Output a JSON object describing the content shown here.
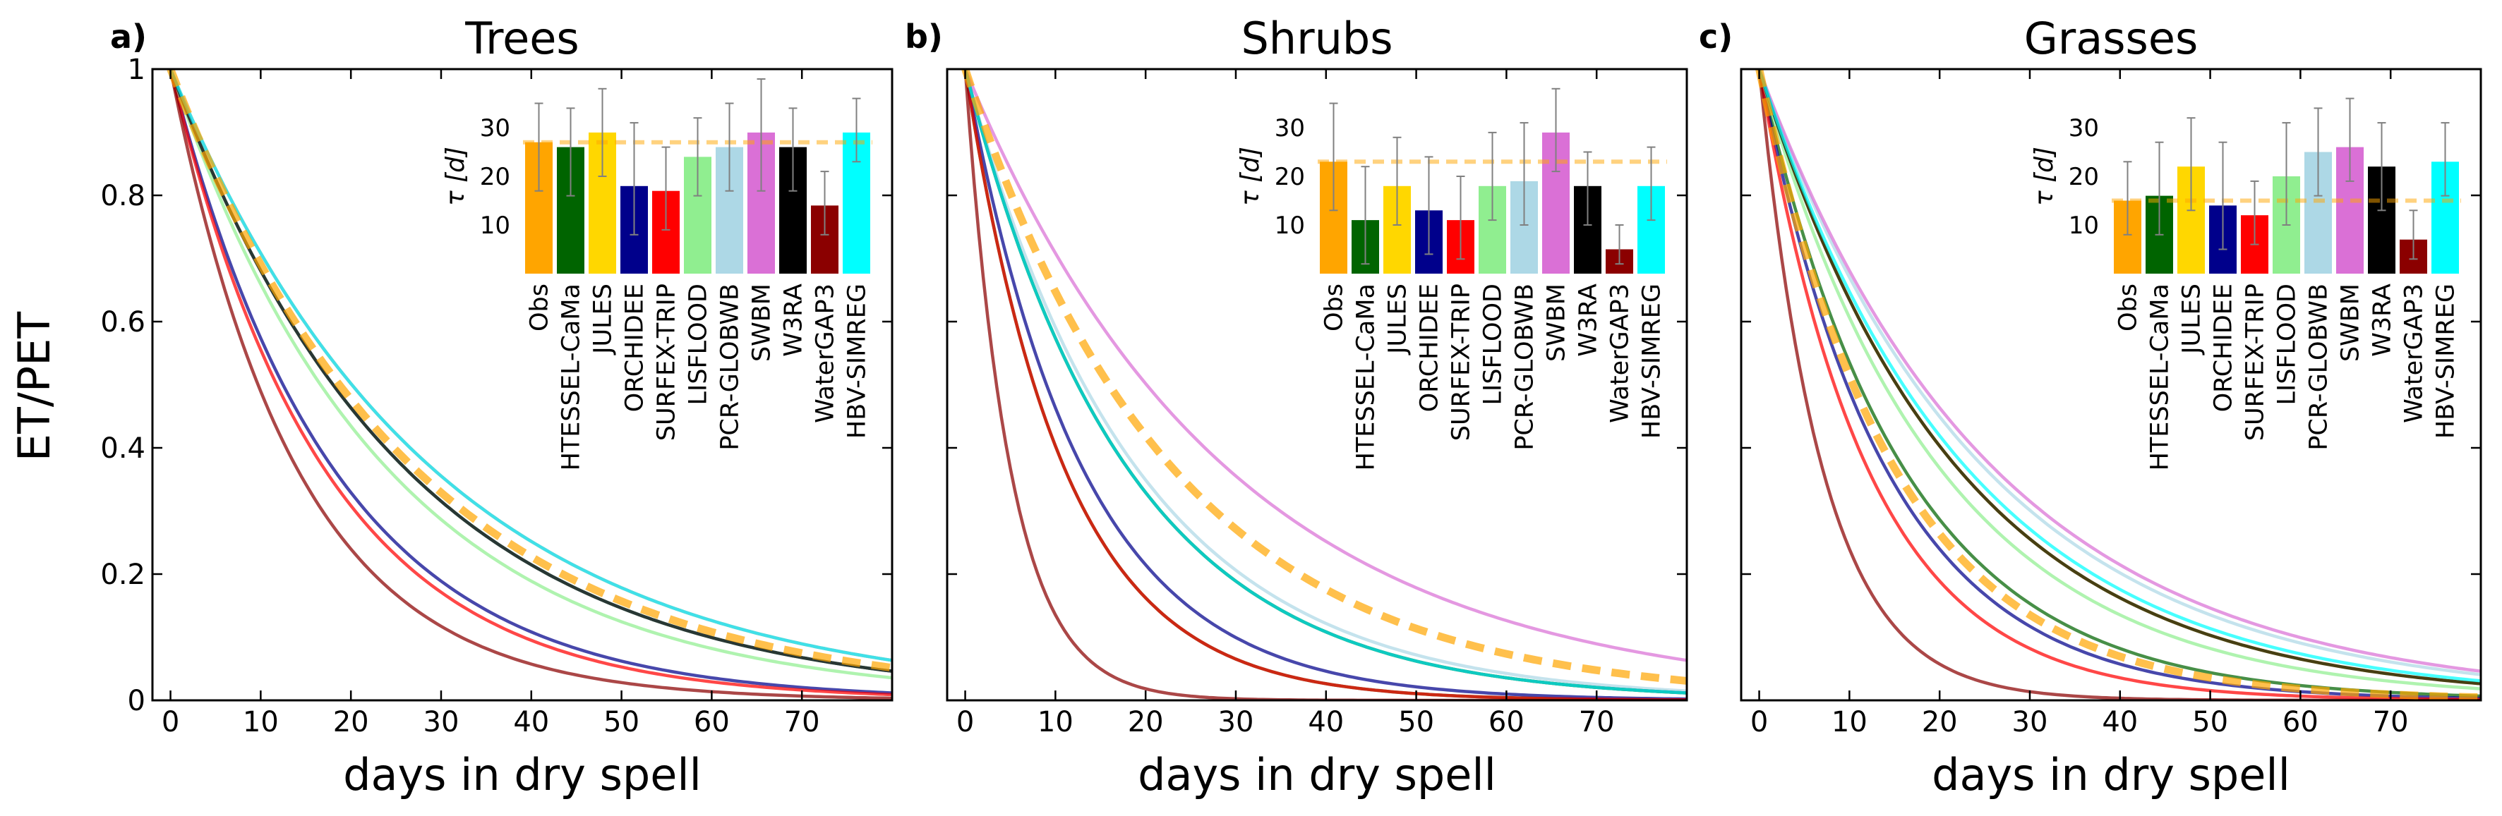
{
  "chart_data": {
    "type": "line",
    "ylabel": "ET/PET",
    "xlabel": "days in dry spell",
    "xlim": [
      -2,
      80
    ],
    "ylim": [
      0,
      1
    ],
    "xticks": [
      0,
      10,
      20,
      30,
      40,
      50,
      60,
      70
    ],
    "yticks": [
      0,
      0.2,
      0.4,
      0.6,
      0.8,
      1
    ],
    "ytick_labels": [
      "0",
      "0.2",
      "0.4",
      "0.6",
      "0.8",
      "1"
    ],
    "curve_formula": "ET/PET = exp(-t / tau)",
    "models": [
      "Obs",
      "HTESSEL-CaMa",
      "JULES",
      "ORCHIDEE",
      "SURFEX-TRIP",
      "LISFLOOD",
      "PCR-GLOBWB",
      "SWBM",
      "W3RA",
      "WaterGAP3",
      "HBV-SIMREG"
    ],
    "colors": {
      "Obs": "#ffa500",
      "HTESSEL-CaMa": "#006400",
      "JULES": "#ffd700",
      "ORCHIDEE": "#00008b",
      "SURFEX-TRIP": "#ff0000",
      "LISFLOOD": "#90ee90",
      "PCR-GLOBWB": "#add8e6",
      "SWBM": "#da70d6",
      "W3RA": "#000000",
      "WaterGAP3": "#8b0000",
      "HBV-SIMREG": "#00ffff"
    },
    "inset": {
      "ylabel": "τ [d]",
      "yticks": [
        10,
        20,
        30
      ],
      "ylim": [
        0,
        40
      ]
    },
    "panels": [
      {
        "letter": "a)",
        "title": "Trees",
        "tau": [
          27,
          26,
          29,
          18,
          17,
          24,
          26,
          29,
          26,
          14,
          29
        ],
        "err_low": [
          17,
          16,
          20,
          8,
          9,
          16,
          17,
          17,
          17,
          8,
          23
        ],
        "err_high": [
          35,
          34,
          38,
          31,
          26,
          32,
          35,
          40,
          34,
          21,
          36
        ]
      },
      {
        "letter": "b)",
        "title": "Shrubs",
        "tau": [
          23,
          11,
          18,
          13,
          11,
          18,
          19,
          29,
          18,
          5,
          18
        ],
        "err_low": [
          13,
          2,
          10,
          4,
          3,
          11,
          10,
          21,
          10,
          2,
          11
        ],
        "err_high": [
          35,
          22,
          28,
          24,
          20,
          29,
          31,
          38,
          25,
          10,
          26
        ]
      },
      {
        "letter": "c)",
        "title": "Grasses",
        "tau": [
          15,
          16,
          22,
          14,
          12,
          20,
          25,
          26,
          22,
          7,
          23
        ],
        "err_low": [
          8,
          8,
          13,
          5,
          6,
          10,
          16,
          19,
          13,
          3,
          16
        ],
        "err_high": [
          23,
          27,
          32,
          27,
          19,
          31,
          34,
          36,
          31,
          13,
          31
        ]
      }
    ]
  }
}
